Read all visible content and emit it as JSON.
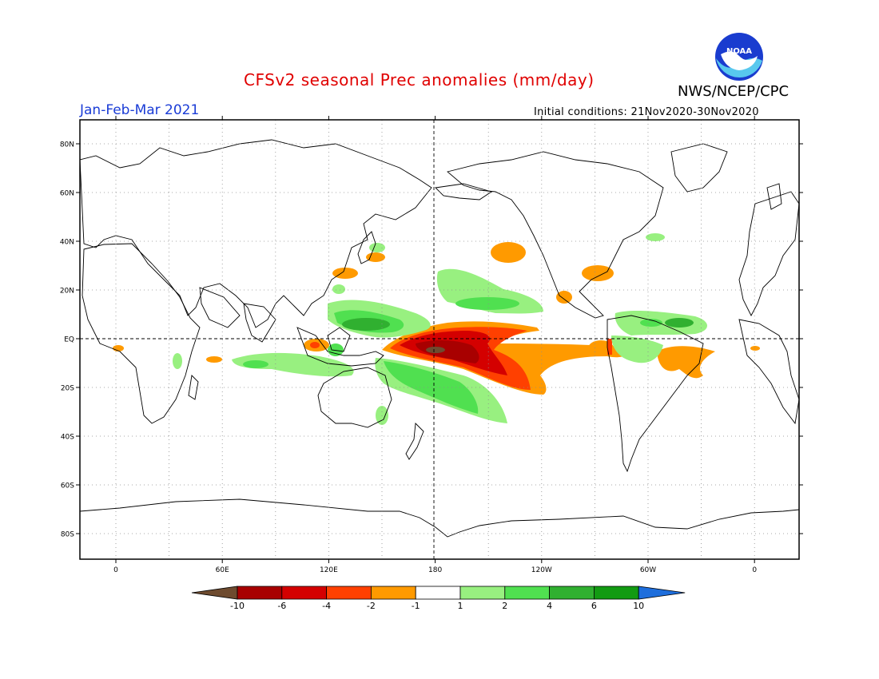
{
  "header": {
    "title": "CFSv2 seasonal Prec anomalies (mm/day)",
    "org": "NWS/NCEP/CPC",
    "period": "Jan-Feb-Mar 2021",
    "initial_conditions": "Initial conditions: 21Nov2020-30Nov2020",
    "logo_text": "NOAA"
  },
  "map": {
    "lat_labels": [
      {
        "label": "80N",
        "lat": 80
      },
      {
        "label": "60N",
        "lat": 60
      },
      {
        "label": "40N",
        "lat": 40
      },
      {
        "label": "20N",
        "lat": 20
      },
      {
        "label": "EQ",
        "lat": 0
      },
      {
        "label": "20S",
        "lat": -20
      },
      {
        "label": "40S",
        "lat": -40
      },
      {
        "label": "60S",
        "lat": -60
      },
      {
        "label": "80S",
        "lat": -80
      }
    ],
    "lon_labels": [
      {
        "label": "0",
        "lon": 0
      },
      {
        "label": "60E",
        "lon": 60
      },
      {
        "label": "120E",
        "lon": 120
      },
      {
        "label": "180",
        "lon": 180
      },
      {
        "label": "120W",
        "lon": 240
      },
      {
        "label": "60W",
        "lon": 300
      },
      {
        "label": "0",
        "lon": 360
      }
    ]
  },
  "legend": {
    "labels": [
      "-10",
      "-6",
      "-4",
      "-2",
      "-1",
      "1",
      "2",
      "4",
      "6",
      "10"
    ],
    "colors": {
      "lt_neg10": "#6e4b2f",
      "neg10_neg6": "#a80000",
      "neg6_neg4": "#d40000",
      "neg4_neg2": "#ff4000",
      "neg2_neg1": "#ff9a00",
      "neg1_1": "#ffffff",
      "p1_p2": "#98f080",
      "p2_p4": "#50e050",
      "p4_p6": "#30b030",
      "p6_p10": "#129b12",
      "gt_10": "#1e6edc"
    }
  }
}
